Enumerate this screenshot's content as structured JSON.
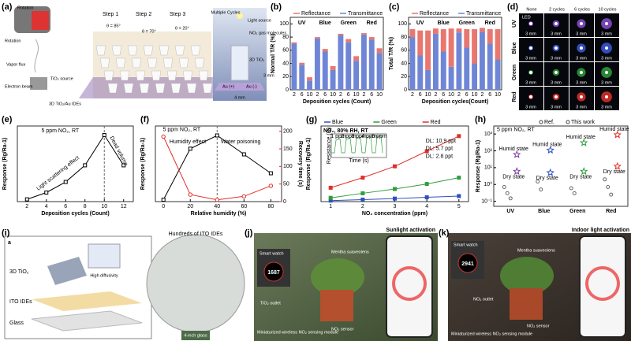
{
  "panel_labels": [
    "(a)",
    "(b)",
    "(c)",
    "(d)",
    "(e)",
    "(f)",
    "(g)",
    "(h)",
    "(i)",
    "(j)",
    "(k)"
  ],
  "panel_a": {
    "rotation": "Rotation",
    "steps": [
      "Step 1",
      "Step 2",
      "Step 3"
    ],
    "angles": [
      "θ = 85°",
      "θ = 70°",
      "θ = 20°"
    ],
    "vapor_flux": "Vapor flux",
    "source": "TiO₂ source",
    "electron_beam": "Electron beam",
    "substrate": "3D TiO₂/Au IDEs",
    "multiple_cycles": "Multiple Cycles",
    "light_source": "Light source",
    "gas": "NO₂ gas molecules",
    "film": "3D TiO₂",
    "electrode_plus": "Au (+)",
    "electrode_minus": "Au (-)",
    "width": "4 mm",
    "depth": "3 mm"
  },
  "panel_d": {
    "columns": [
      "None",
      "2 cycles",
      "6 cycles",
      "10 cycles"
    ],
    "rows": [
      "UV",
      "Blue",
      "Green",
      "Red"
    ],
    "row_colors": [
      "#8a4fd0",
      "#3b5bdb",
      "#2f9e3c",
      "#e0302a"
    ],
    "led": "LED",
    "scale": "3 mm"
  },
  "chart_data": [
    {
      "type": "bar",
      "stacked": true,
      "ylabel": "Normal T/R (%)",
      "xlabel": "Deposition cycles (Count)",
      "groups": [
        "UV",
        "Blue",
        "Green",
        "Red"
      ],
      "group_colors": [
        "#7b3fa0",
        "#2f4fbf",
        "#2f9e3c",
        "#e0302a"
      ],
      "categories": [
        "2",
        "6",
        "10",
        "2",
        "6",
        "10",
        "2",
        "6",
        "10",
        "2",
        "6",
        "10"
      ],
      "series": [
        {
          "name": "Reflectance",
          "color": "#e8776f",
          "values": [
            2,
            3,
            5,
            2,
            4,
            6,
            2,
            5,
            7,
            2,
            4,
            7
          ]
        },
        {
          "name": "Transmittance",
          "color": "#6f86d6",
          "values": [
            70,
            38,
            14,
            78,
            58,
            30,
            83,
            72,
            44,
            84,
            76,
            56
          ]
        }
      ],
      "ylim": [
        0,
        110
      ],
      "yticks": [
        0,
        20,
        40,
        60,
        80,
        100
      ]
    },
    {
      "type": "bar",
      "stacked": true,
      "ylabel": "Total T/R (%)",
      "xlabel": "Deposition cycles(Count)",
      "groups": [
        "UV",
        "Blue",
        "Green",
        "Red"
      ],
      "group_colors": [
        "#7b3fa0",
        "#2f4fbf",
        "#2f9e3c",
        "#e0302a"
      ],
      "categories": [
        "2",
        "6",
        "10",
        "2",
        "6",
        "10",
        "2",
        "6",
        "10",
        "2",
        "6",
        "10"
      ],
      "series": [
        {
          "name": "Reflectance",
          "color": "#e8776f",
          "values": [
            12,
            38,
            60,
            8,
            34,
            58,
            6,
            28,
            52,
            6,
            22,
            46
          ]
        },
        {
          "name": "Transmittance",
          "color": "#6f86d6",
          "values": [
            80,
            52,
            30,
            85,
            58,
            35,
            87,
            64,
            40,
            88,
            70,
            46
          ]
        }
      ],
      "ylim": [
        0,
        110
      ],
      "yticks": [
        0,
        20,
        40,
        60,
        80,
        100
      ]
    },
    {
      "type": "line",
      "ylabel": "Response (Rg/Ra-1)",
      "xlabel": "Deposition cycles (Count)",
      "annotations": {
        "condition": "5 ppm NO₂, RT",
        "rise": "Light scattering effect",
        "fall": "Dead volume"
      },
      "x": [
        2,
        4,
        6,
        8,
        10,
        12
      ],
      "series": [
        {
          "color": "#000000",
          "marker": "square",
          "values": [
            15,
            60,
            130,
            240,
            440,
            240
          ]
        }
      ],
      "xlim": [
        1,
        13
      ],
      "xticks": [
        2,
        4,
        6,
        8,
        10,
        12
      ],
      "ylim": [
        0,
        500
      ],
      "vline": 10
    },
    {
      "type": "line",
      "ylabel": "Response (Rg/Ra-1)",
      "y2label": "Recovery time (s)",
      "xlabel": "Relative humidity (%)",
      "annotations": {
        "condition": "5 ppm NO₂, RT",
        "rise": "Humidity effect",
        "fall": "Water poisoning"
      },
      "x": [
        0,
        20,
        40,
        60,
        80
      ],
      "series": [
        {
          "color": "#000000",
          "marker": "square",
          "values": [
            5,
            140,
            175,
            125,
            75
          ]
        },
        {
          "color": "#e0302a",
          "marker": "circle",
          "axis": "y2",
          "values": [
            185,
            20,
            5,
            15,
            45
          ]
        }
      ],
      "xlim": [
        -6,
        88
      ],
      "xticks": [
        0,
        20,
        40,
        60,
        80
      ],
      "ylim": [
        0,
        200
      ],
      "y2lim": [
        0,
        215
      ],
      "y2ticks": [
        0,
        50,
        100,
        150,
        200
      ],
      "y2color": "#e0302a",
      "vline": 40
    },
    {
      "type": "line",
      "title": "NO₂, 80% RH, RT",
      "ylabel": "Response (Rg/Ra-1)",
      "xlabel": "NO₂ concentration (ppm)",
      "annotations": {
        "dl_blue": "DL: 10.9 ppt",
        "dl_green": "DL: 5.7 ppt",
        "dl_red": "DL: 2.8 ppt",
        "inset_y": "Resistance (Ω)",
        "inset_x": "Time (s)",
        "inset_steps": [
          "1 ppm",
          "2 ppm",
          "3 ppm",
          "4 ppm",
          "5 ppm"
        ]
      },
      "x": [
        1,
        2,
        3,
        4,
        5
      ],
      "series": [
        {
          "name": "Blue",
          "color": "#2f4fbf",
          "marker": "square",
          "values": [
            0.4,
            0.8,
            1.2,
            1.7,
            2.2
          ]
        },
        {
          "name": "Green",
          "color": "#2f9e3c",
          "marker": "square",
          "values": [
            1.5,
            3.3,
            5,
            7,
            9.5
          ]
        },
        {
          "name": "Red",
          "color": "#e0302a",
          "marker": "square",
          "values": [
            5.5,
            9.5,
            14,
            20,
            26
          ]
        }
      ],
      "xlim": [
        0.7,
        5.3
      ],
      "xticks": [
        1,
        2,
        3,
        4,
        5
      ],
      "ylim": [
        0,
        30
      ]
    },
    {
      "type": "scatter",
      "ylog": true,
      "ylabel": "Response (Rg/Ra-1)",
      "annotations": {
        "condition": "5 ppm NO₂, RT"
      },
      "categories": [
        "UV",
        "Blue",
        "Green",
        "Red"
      ],
      "category_colors": [
        "#7b3fa0",
        "#2f4fbf",
        "#2f9e3c",
        "#e0302a"
      ],
      "series": [
        {
          "name": "Ref.",
          "color": "#666666",
          "marker": "circle",
          "x": [
            "UV",
            "UV",
            "UV",
            "Blue",
            "Blue",
            "Green",
            "Green",
            "Red",
            "Red",
            "Red"
          ],
          "values": [
            0.7,
            0.3,
            0.15,
            1.5,
            0.5,
            0.6,
            0.3,
            2,
            0.7,
            0.25
          ]
        },
        {
          "name": "This work",
          "color": "#444444",
          "marker": "star",
          "x": [
            "UV",
            "UV",
            "Blue",
            "Blue",
            "Green",
            "Green",
            "Red",
            "Red"
          ],
          "values": [
            60,
            6,
            110,
            5,
            300,
            6,
            900,
            12
          ],
          "point_labels": [
            "Humid state",
            "Dry state",
            "Humid state",
            "Dry state",
            "Humid state",
            "Dry state",
            "Humid state",
            "Dry state"
          ]
        }
      ],
      "ylim": [
        0.05,
        3000
      ],
      "yticks": [
        {
          "value": 0.1,
          "label": "10⁻¹"
        },
        {
          "value": 1,
          "label": "10⁰"
        },
        {
          "value": 10,
          "label": "10¹"
        },
        {
          "value": 100,
          "label": "10²"
        },
        {
          "value": 1000,
          "label": "10³"
        }
      ]
    }
  ],
  "panel_i": {
    "sub": "a",
    "film": "3D TiO₂",
    "diffusivity": "High diffusivity",
    "electrodes": "ITO IDEs",
    "glass": "Glass",
    "wafer": "Hundreds of ITO IDEs",
    "wafer_size": "4-inch glass"
  },
  "panel_j": {
    "mode": "Sunlight activation",
    "watch": "Smart watch",
    "reading": "1687",
    "plant": "Mentha suaveolens",
    "outlet": "TiO₂ outlet",
    "sensor": "NO₂ sensor",
    "module": "Miniaturized wireless NO₂ sensing module"
  },
  "panel_k": {
    "mode": "Indoor light activation",
    "watch": "Smart watch",
    "reading": "2941",
    "plant": "Mentha suaveolens",
    "outlet": "NO₂ outlet",
    "sensor": "NO₂ sensor",
    "module": "Miniaturized wireless NO₂ sensing module"
  }
}
